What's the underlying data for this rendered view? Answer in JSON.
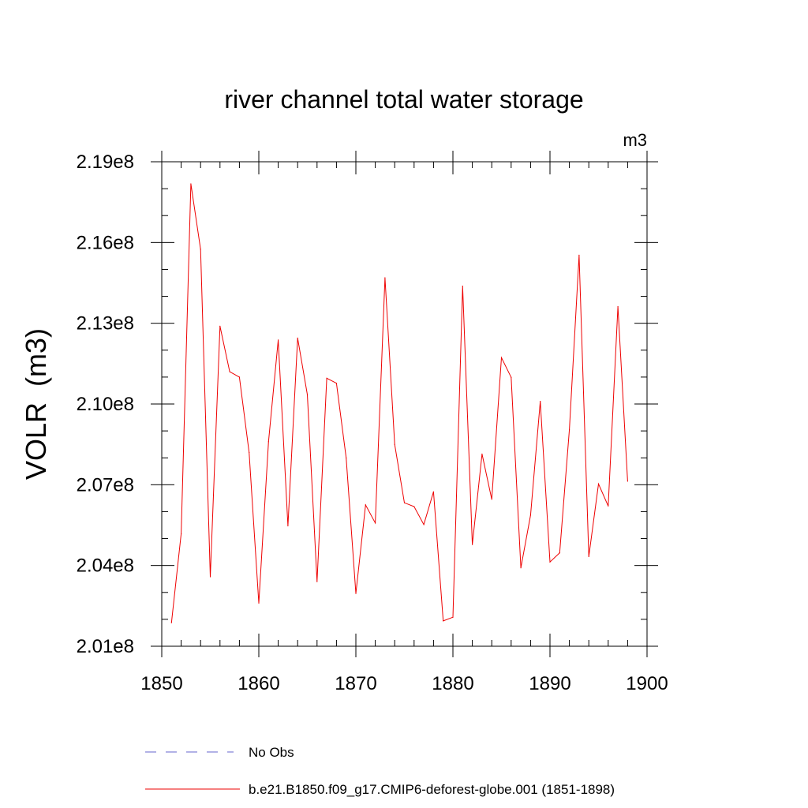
{
  "chart_data": {
    "type": "line",
    "title": "river channel total water storage",
    "units_label": "m3",
    "xlabel": "",
    "ylabel": "VOLR  (m3)",
    "xlim": [
      1850,
      1900
    ],
    "ylim": [
      201000000,
      219000000
    ],
    "xticks": [
      1850,
      1860,
      1870,
      1880,
      1890,
      1900
    ],
    "xtick_labels": [
      "1850",
      "1860",
      "1870",
      "1880",
      "1890",
      "1900"
    ],
    "yticks": [
      201000000,
      204000000,
      207000000,
      210000000,
      213000000,
      216000000,
      219000000
    ],
    "ytick_labels": [
      "2.01e8",
      "2.04e8",
      "2.07e8",
      "2.10e8",
      "2.13e8",
      "2.16e8",
      "2.19e8"
    ],
    "x_minor_step": 2,
    "y_minor_step": 1000000,
    "grid": false,
    "legend": [
      {
        "label": "No Obs",
        "color": "#6666cc",
        "style": "dashed"
      },
      {
        "label": "b.e21.B1850.f09_g17.CMIP6-deforest-globe.001 (1851-1898)",
        "color": "#ee0000",
        "style": "solid"
      }
    ],
    "series": [
      {
        "name": "b.e21.B1850.f09_g17.CMIP6-deforest-globe.001 (1851-1898)",
        "color": "#ee0000",
        "x": [
          1851,
          1852,
          1853,
          1854,
          1855,
          1856,
          1857,
          1858,
          1859,
          1860,
          1861,
          1862,
          1863,
          1864,
          1865,
          1866,
          1867,
          1868,
          1869,
          1870,
          1871,
          1872,
          1873,
          1874,
          1875,
          1876,
          1877,
          1878,
          1879,
          1880,
          1881,
          1882,
          1883,
          1884,
          1885,
          1886,
          1887,
          1888,
          1889,
          1890,
          1891,
          1892,
          1893,
          1894,
          1895,
          1896,
          1897,
          1898
        ],
        "values": [
          201870000,
          205180000,
          218180000,
          215750000,
          203580000,
          212890000,
          211200000,
          211000000,
          208200000,
          202600000,
          208600000,
          212380000,
          205470000,
          212450000,
          210350000,
          203400000,
          210960000,
          210770000,
          208000000,
          202960000,
          206250000,
          205580000,
          214690000,
          208500000,
          206330000,
          206190000,
          205520000,
          206740000,
          201940000,
          202080000,
          214380000,
          204780000,
          208140000,
          206460000,
          211720000,
          210990000,
          203910000,
          205870000,
          210100000,
          204130000,
          204470000,
          209050000,
          215530000,
          204330000,
          207030000,
          206210000,
          213620000,
          207130000
        ]
      }
    ]
  }
}
